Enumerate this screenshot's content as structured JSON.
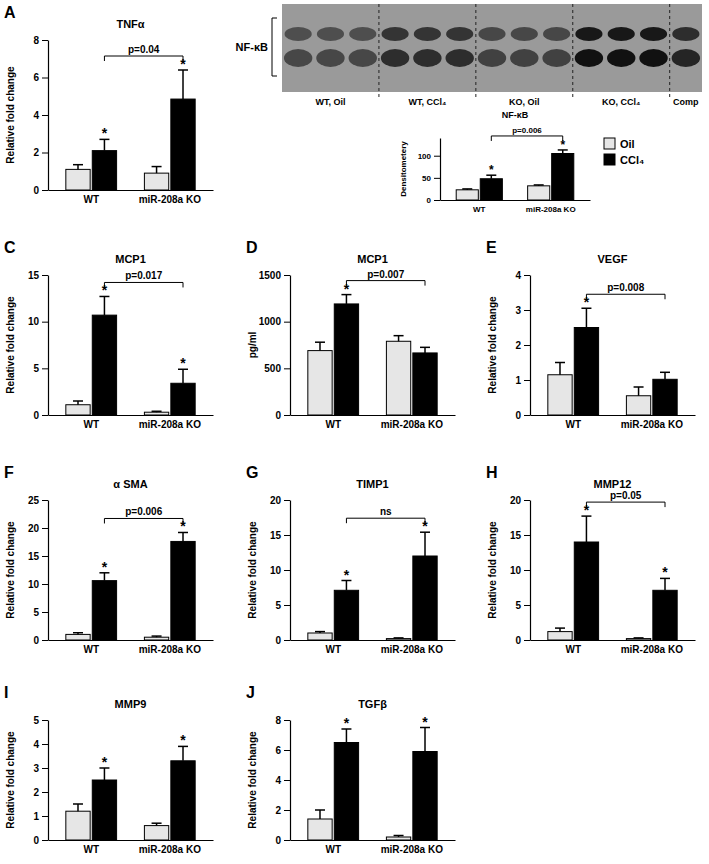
{
  "chart_data": [
    {
      "type": "bar",
      "panel": "A",
      "title": "TNFα",
      "ylabel": "Relative fold change",
      "categories": [
        "WT",
        "miR-208a KO"
      ],
      "series": [
        {
          "name": "Oil",
          "color": "#e6e6e6",
          "values": [
            1.1,
            0.9
          ],
          "errors": [
            0.25,
            0.35
          ],
          "stars": [
            null,
            null
          ]
        },
        {
          "name": "CCl₄",
          "color": "#000000",
          "values": [
            2.1,
            4.85
          ],
          "errors": [
            0.6,
            1.55
          ],
          "stars": [
            "*",
            "*"
          ]
        }
      ],
      "bracket": "p=0.04",
      "ylim": [
        0,
        8
      ],
      "yticks": [
        0,
        2,
        4,
        6,
        8
      ]
    },
    {
      "type": "bar",
      "panel": "B",
      "title": "NF-κB",
      "ylabel": "Densitometery",
      "categories": [
        "WT",
        "miR-208a KO"
      ],
      "series": [
        {
          "name": "Oil",
          "color": "#e6e6e6",
          "values": [
            23,
            32
          ],
          "errors": [
            2,
            2
          ],
          "stars": [
            null,
            null
          ]
        },
        {
          "name": "CCl₄",
          "color": "#000000",
          "values": [
            48,
            105
          ],
          "errors": [
            8,
            8
          ],
          "stars": [
            "*",
            "*"
          ]
        }
      ],
      "bracket": "p=0.006",
      "legend": "right",
      "ylim": [
        0,
        140
      ],
      "yticks": [
        0,
        50,
        100
      ]
    },
    {
      "type": "bar",
      "panel": "C",
      "title": "MCP1",
      "ylabel": "Relative fold change",
      "categories": [
        "WT",
        "miR-208a KO"
      ],
      "series": [
        {
          "name": "Oil",
          "color": "#e6e6e6",
          "values": [
            1.1,
            0.3
          ],
          "errors": [
            0.4,
            0.1
          ],
          "stars": [
            null,
            null
          ]
        },
        {
          "name": "CCl₄",
          "color": "#000000",
          "values": [
            10.7,
            3.4
          ],
          "errors": [
            2.0,
            1.5
          ],
          "stars": [
            "*",
            "*"
          ]
        }
      ],
      "bracket": "p=0.017",
      "ylim": [
        0,
        15
      ],
      "yticks": [
        0,
        5,
        10,
        15
      ]
    },
    {
      "type": "bar",
      "panel": "D",
      "title": "MCP1",
      "ylabel": "pg/ml",
      "categories": [
        "WT",
        "miR-208a KO"
      ],
      "series": [
        {
          "name": "Oil",
          "color": "#e6e6e6",
          "values": [
            690,
            790
          ],
          "errors": [
            90,
            60
          ],
          "stars": [
            null,
            null
          ]
        },
        {
          "name": "CCl₄",
          "color": "#000000",
          "values": [
            1190,
            665
          ],
          "errors": [
            100,
            60
          ],
          "stars": [
            "*",
            null
          ]
        }
      ],
      "bracket": "p=0.007",
      "ylim": [
        0,
        1500
      ],
      "yticks": [
        0,
        500,
        1000,
        1500
      ]
    },
    {
      "type": "bar",
      "panel": "E",
      "title": "VEGF",
      "ylabel": "Relative fold change",
      "categories": [
        "WT",
        "miR-208a KO"
      ],
      "series": [
        {
          "name": "Oil",
          "color": "#e6e6e6",
          "values": [
            1.15,
            0.55
          ],
          "errors": [
            0.35,
            0.25
          ],
          "stars": [
            null,
            null
          ]
        },
        {
          "name": "CCl₄",
          "color": "#000000",
          "values": [
            2.5,
            1.02
          ],
          "errors": [
            0.55,
            0.2
          ],
          "stars": [
            "*",
            null
          ]
        }
      ],
      "bracket": "p=0.008",
      "ylim": [
        0,
        4
      ],
      "yticks": [
        0,
        1,
        2,
        3,
        4
      ]
    },
    {
      "type": "bar",
      "panel": "F",
      "title": "α SMA",
      "ylabel": "Relative fold change",
      "categories": [
        "WT",
        "miR-208a KO"
      ],
      "series": [
        {
          "name": "Oil",
          "color": "#e6e6e6",
          "values": [
            1.0,
            0.5
          ],
          "errors": [
            0.3,
            0.2
          ],
          "stars": [
            null,
            null
          ]
        },
        {
          "name": "CCl₄",
          "color": "#000000",
          "values": [
            10.6,
            17.6
          ],
          "errors": [
            1.4,
            1.6
          ],
          "stars": [
            "*",
            "*"
          ]
        }
      ],
      "bracket": "p=0.006",
      "ylim": [
        0,
        25
      ],
      "yticks": [
        0,
        5,
        10,
        15,
        20,
        25
      ]
    },
    {
      "type": "bar",
      "panel": "G",
      "title": "TIMP1",
      "ylabel": "Relative fold change",
      "categories": [
        "WT",
        "miR-208a KO"
      ],
      "series": [
        {
          "name": "Oil",
          "color": "#e6e6e6",
          "values": [
            1.0,
            0.2
          ],
          "errors": [
            0.2,
            0.1
          ],
          "stars": [
            null,
            null
          ]
        },
        {
          "name": "CCl₄",
          "color": "#000000",
          "values": [
            7.1,
            12
          ],
          "errors": [
            1.4,
            3.4
          ],
          "stars": [
            "*",
            "*"
          ]
        }
      ],
      "bracket": "ns",
      "ylim": [
        0,
        20
      ],
      "yticks": [
        0,
        5,
        10,
        15,
        20
      ]
    },
    {
      "type": "bar",
      "panel": "H",
      "title": "MMP12",
      "ylabel": "Relative fold change",
      "categories": [
        "WT",
        "miR-208a KO"
      ],
      "series": [
        {
          "name": "Oil",
          "color": "#e6e6e6",
          "values": [
            1.2,
            0.2
          ],
          "errors": [
            0.5,
            0.1
          ],
          "stars": [
            null,
            null
          ]
        },
        {
          "name": "CCl₄",
          "color": "#000000",
          "values": [
            14,
            7.1
          ],
          "errors": [
            3.7,
            1.7
          ],
          "stars": [
            "*",
            "*"
          ]
        }
      ],
      "bracket": "p=0.05",
      "ylim": [
        0,
        20
      ],
      "yticks": [
        0,
        5,
        10,
        15,
        20
      ]
    },
    {
      "type": "bar",
      "panel": "I",
      "title": "MMP9",
      "ylabel": "Relative fold change",
      "categories": [
        "WT",
        "miR-208a KO"
      ],
      "series": [
        {
          "name": "Oil",
          "color": "#e6e6e6",
          "values": [
            1.2,
            0.6
          ],
          "errors": [
            0.3,
            0.1
          ],
          "stars": [
            null,
            null
          ]
        },
        {
          "name": "CCl₄",
          "color": "#000000",
          "values": [
            2.5,
            3.3
          ],
          "errors": [
            0.5,
            0.6
          ],
          "stars": [
            "*",
            "*"
          ]
        }
      ],
      "ylim": [
        0,
        5
      ],
      "yticks": [
        0,
        1,
        2,
        3,
        4,
        5
      ]
    },
    {
      "type": "bar",
      "panel": "J",
      "title": "TGFβ",
      "ylabel": "Relative fold change",
      "categories": [
        "WT",
        "miR-208a KO"
      ],
      "series": [
        {
          "name": "Oil",
          "color": "#e6e6e6",
          "values": [
            1.4,
            0.2
          ],
          "errors": [
            0.6,
            0.1
          ],
          "stars": [
            null,
            null
          ]
        },
        {
          "name": "CCl₄",
          "color": "#000000",
          "values": [
            6.5,
            5.9
          ],
          "errors": [
            0.9,
            1.6
          ],
          "stars": [
            "*",
            "*"
          ]
        }
      ],
      "ylim": [
        0,
        8
      ],
      "yticks": [
        0,
        2,
        4,
        6,
        8
      ]
    }
  ],
  "blot": {
    "label": "NF-κB",
    "lanes": [
      "WT, Oil",
      "WT, CCl₄",
      "KO, Oil",
      "KO, CCl₄",
      "Comp"
    ]
  }
}
